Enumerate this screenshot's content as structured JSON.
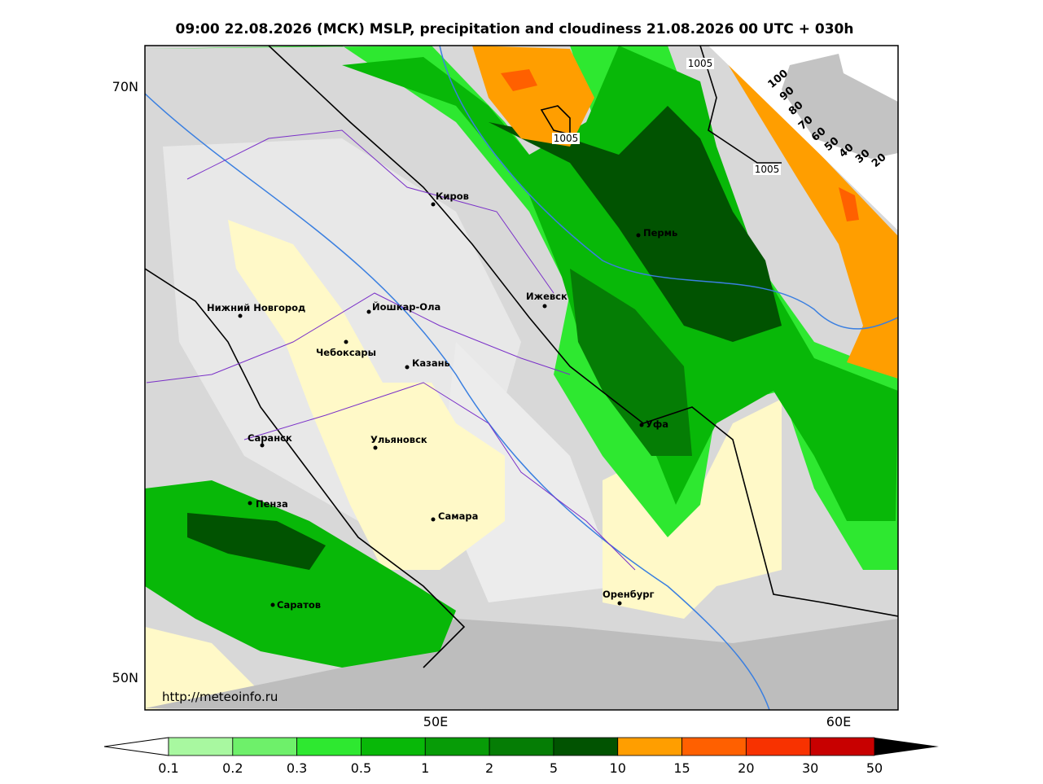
{
  "title": "09:00 22.08.2026 (МСК) MSLP, precipitation and cloudiness 21.08.2026 00 UTC + 030h",
  "url": "http://meteoinfo.ru",
  "lat_labels": [
    "70N",
    "50N"
  ],
  "lon_labels": [
    "50E",
    "60E"
  ],
  "cities": [
    "Киров",
    "Пермь",
    "Ижевск",
    "Нижний Новгород",
    "Йошкар-Ола",
    "Чебоксары",
    "Казань",
    "Саранск",
    "Ульяновск",
    "Уфа",
    "Пенза",
    "Самара",
    "Оренбург",
    "Саратов"
  ],
  "isobar_labels": [
    "1005",
    "1005",
    "1005"
  ],
  "cloud_scale": [
    100,
    90,
    80,
    70,
    60,
    50,
    40,
    30,
    20
  ],
  "colorbar": {
    "ticks": [
      0.1,
      0.2,
      0.3,
      0.5,
      1,
      2,
      5,
      10,
      15,
      20,
      30,
      50
    ],
    "colors": [
      "#a8f8a0",
      "#6ef06a",
      "#2ee830",
      "#08b808",
      "#079c07",
      "#057d05",
      "#015301",
      "#ff9e00",
      "#ff6000",
      "#f83200",
      "#c80000",
      "#9a0000"
    ]
  }
}
